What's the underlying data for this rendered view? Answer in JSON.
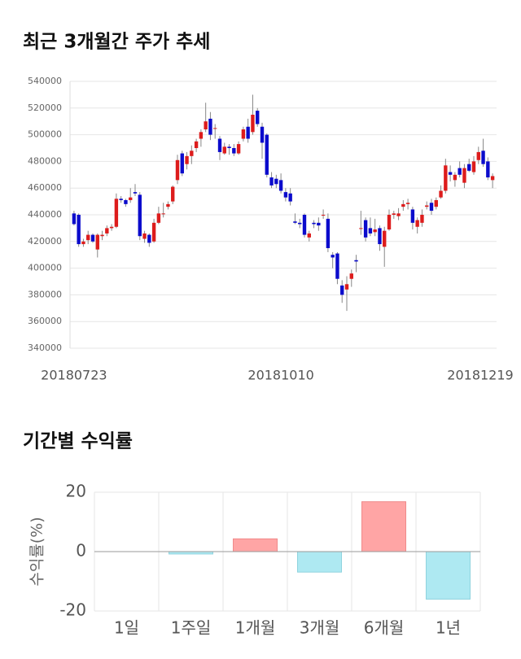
{
  "chart_data": [
    {
      "type": "candlestick",
      "title": "최근 3개월간 주가 추세",
      "categories": [
        "20180723",
        null,
        null,
        null,
        null,
        null,
        null,
        null,
        null,
        null,
        null,
        null,
        null,
        null,
        null,
        null,
        null,
        null,
        null,
        null,
        null,
        null,
        null,
        null,
        null,
        null,
        null,
        null,
        null,
        null,
        null,
        null,
        null,
        null,
        null,
        null,
        null,
        null,
        null,
        null,
        null,
        null,
        null,
        null,
        "20181010",
        null,
        null,
        null,
        null,
        null,
        null,
        null,
        null,
        null,
        null,
        null,
        null,
        null,
        null,
        null,
        null,
        null,
        null,
        null,
        null,
        null,
        null,
        null,
        null,
        null,
        null,
        null,
        null,
        null,
        null,
        null,
        null,
        null,
        null,
        null,
        null,
        null,
        null,
        null,
        null,
        null,
        null,
        null,
        null,
        "20181219"
      ],
      "open": [
        441000,
        440000,
        418000,
        421000,
        425000,
        414000,
        424000,
        426000,
        430000,
        431000,
        452000,
        451000,
        451000,
        457000,
        455000,
        422000,
        425000,
        420000,
        434000,
        441000,
        446000,
        450000,
        466000,
        486000,
        478000,
        484000,
        490000,
        497000,
        504000,
        512000,
        505000,
        497000,
        486000,
        491000,
        490000,
        486000,
        497000,
        506000,
        502000,
        518000,
        506000,
        500000,
        468000,
        467000,
        466000,
        457000,
        456000,
        435000,
        434000,
        440000,
        423000,
        434000,
        434000,
        440000,
        437000,
        410000,
        411000,
        387000,
        384000,
        392000,
        406000,
        430000,
        436000,
        430000,
        427000,
        430000,
        416000,
        429000,
        440000,
        439000,
        446000,
        448000,
        444000,
        431000,
        434000,
        446000,
        449000,
        446000,
        453000,
        458000,
        472000,
        466000,
        475000,
        464000,
        478000,
        472000,
        481000,
        488000,
        480000,
        466000
      ],
      "high": [
        443000,
        441000,
        422000,
        428000,
        426000,
        426000,
        428000,
        432000,
        433000,
        456000,
        454000,
        452000,
        460000,
        463000,
        457000,
        428000,
        426000,
        437000,
        446000,
        449000,
        450000,
        462000,
        485000,
        488000,
        487000,
        492000,
        497000,
        504000,
        524000,
        517000,
        508000,
        499000,
        494000,
        493000,
        493000,
        495000,
        506000,
        512000,
        530000,
        520000,
        509000,
        501000,
        472000,
        470000,
        471000,
        460000,
        460000,
        441000,
        437000,
        441000,
        428000,
        436000,
        438000,
        444000,
        441000,
        412000,
        412000,
        391000,
        394000,
        399000,
        410000,
        443000,
        438000,
        438000,
        437000,
        432000,
        431000,
        444000,
        443000,
        445000,
        451000,
        452000,
        446000,
        438000,
        444000,
        450000,
        452000,
        453000,
        462000,
        482000,
        477000,
        472000,
        480000,
        478000,
        482000,
        484000,
        491000,
        497000,
        483000,
        471000
      ],
      "low": [
        432000,
        416000,
        416000,
        418000,
        419000,
        408000,
        421000,
        424000,
        428000,
        430000,
        449000,
        446000,
        449000,
        454000,
        421000,
        419000,
        416000,
        419000,
        433000,
        438000,
        444000,
        448000,
        463000,
        469000,
        474000,
        478000,
        487000,
        491000,
        502000,
        496000,
        497000,
        481000,
        485000,
        485000,
        484000,
        485000,
        495000,
        494000,
        500000,
        506000,
        482000,
        468000,
        460000,
        460000,
        456000,
        450000,
        447000,
        433000,
        430000,
        423000,
        420000,
        430000,
        428000,
        437000,
        412000,
        400000,
        388000,
        374000,
        368000,
        386000,
        397000,
        425000,
        420000,
        424000,
        424000,
        413000,
        401000,
        428000,
        437000,
        436000,
        443000,
        444000,
        429000,
        426000,
        431000,
        444000,
        440000,
        444000,
        452000,
        456000,
        465000,
        461000,
        468000,
        460000,
        472000,
        470000,
        478000,
        476000,
        466000,
        460000
      ],
      "close": [
        433000,
        418000,
        420000,
        425000,
        420000,
        425000,
        425000,
        430000,
        431000,
        452000,
        451000,
        448000,
        453000,
        456000,
        424000,
        426000,
        419000,
        434000,
        441000,
        441000,
        448000,
        461000,
        481000,
        471000,
        484000,
        488000,
        495000,
        502000,
        510000,
        500000,
        505000,
        487000,
        491000,
        490000,
        486000,
        493000,
        504000,
        497000,
        515000,
        508000,
        494000,
        470000,
        462000,
        463000,
        458000,
        453000,
        450000,
        434000,
        433000,
        425000,
        426000,
        433000,
        432000,
        440000,
        415000,
        408000,
        392000,
        380000,
        388000,
        396000,
        405000,
        430000,
        423000,
        426000,
        429000,
        418000,
        428000,
        440000,
        441000,
        441000,
        448000,
        449000,
        434000,
        436000,
        440000,
        447000,
        443000,
        451000,
        458000,
        477000,
        470000,
        470000,
        470000,
        475000,
        473000,
        480000,
        487000,
        478000,
        468000,
        469000
      ],
      "up_color": "#dd1c1c",
      "down_color": "#0b0bcc",
      "ylim": [
        340000,
        540000
      ],
      "yticks": [
        340000,
        360000,
        380000,
        400000,
        420000,
        440000,
        460000,
        480000,
        500000,
        520000,
        540000
      ],
      "grid": true
    },
    {
      "type": "bar",
      "title": "기간별 수익률",
      "y_label": "수익률(%)",
      "categories": [
        "1일",
        "1주일",
        "1개월",
        "3개월",
        "6개월",
        "1년"
      ],
      "values": [
        0,
        -0.8,
        4.3,
        -6.9,
        16.8,
        -16.0
      ],
      "positive_color": "#ffa5a5",
      "negative_color": "#aee9f2",
      "ylim": [
        -20,
        20
      ],
      "yticks": [
        -20,
        0,
        20
      ],
      "grid": true
    }
  ]
}
